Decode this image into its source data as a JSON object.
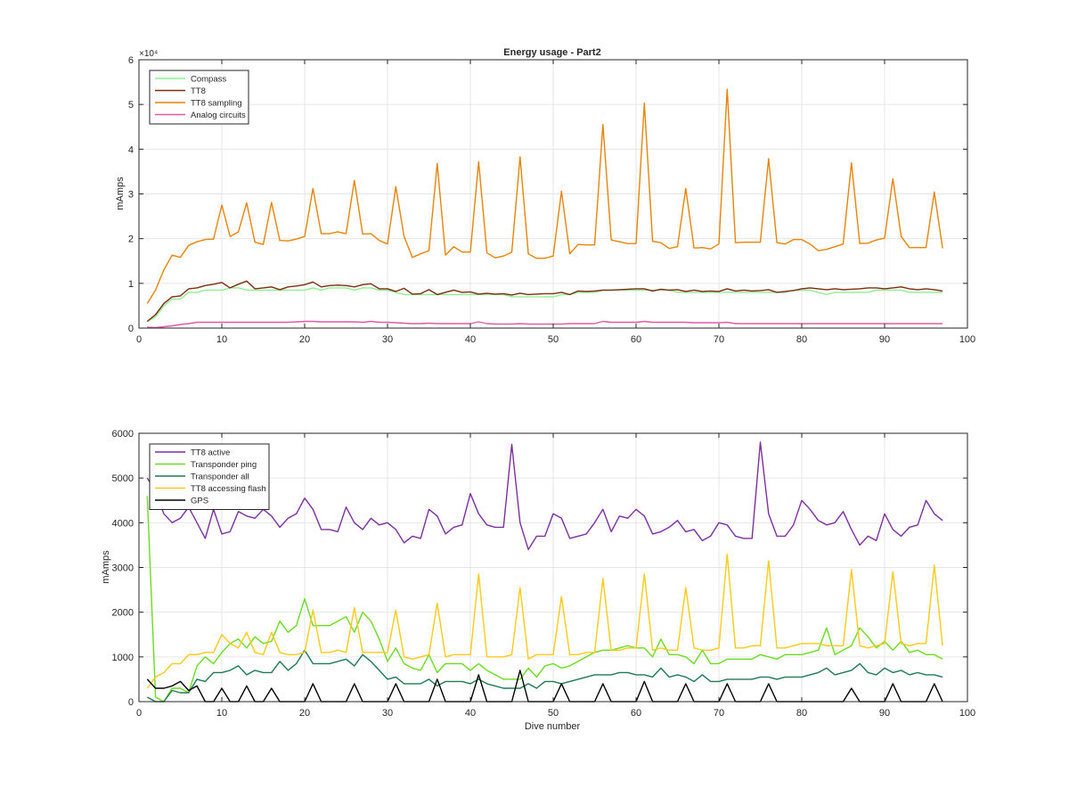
{
  "figure": {
    "background": "#ffffff"
  },
  "chart_data": [
    {
      "type": "line",
      "title": "Energy usage - Part2",
      "xlabel": "",
      "ylabel": "mAmps",
      "xlim": [
        0,
        100
      ],
      "ylim": [
        0,
        60000
      ],
      "xticks": [
        0,
        10,
        20,
        30,
        40,
        50,
        60,
        70,
        80,
        90,
        100
      ],
      "yticks": [
        0,
        10000,
        20000,
        30000,
        40000,
        50000,
        60000
      ],
      "ytick_labels": [
        "0",
        "1",
        "2",
        "3",
        "4",
        "5",
        "6"
      ],
      "exponent_label": "×10⁴",
      "grid": true,
      "legend_position": "top-left",
      "series": [
        {
          "name": "Compass",
          "color": "#90ee90",
          "x_start": 1,
          "values": [
            1500,
            2500,
            5000,
            6500,
            6500,
            8000,
            8000,
            8500,
            8500,
            8500,
            9000,
            9000,
            8500,
            8500,
            8500,
            8500,
            8500,
            8500,
            8500,
            8500,
            9000,
            8500,
            9000,
            9000,
            9000,
            8500,
            9000,
            9000,
            8500,
            8500,
            8000,
            7500,
            7500,
            7500,
            7500,
            7500,
            7500,
            7500,
            7500,
            7500,
            7500,
            7500,
            7500,
            7500,
            7000,
            7000,
            7000,
            7000,
            7000,
            7000,
            7500,
            7500,
            8000,
            8000,
            8000,
            8500,
            8500,
            8500,
            8500,
            8500,
            8500,
            8500,
            8500,
            8500,
            8000,
            8000,
            8000,
            8000,
            8000,
            8000,
            8000,
            8000,
            8000,
            8000,
            8000,
            8000,
            8000,
            8000,
            8500,
            8500,
            8500,
            8000,
            7500,
            8000,
            8000,
            8000,
            8000,
            8000,
            8500,
            8500,
            8500,
            8500,
            8000,
            8000,
            8000,
            8000,
            8000
          ]
        },
        {
          "name": "TT8",
          "color": "#7b2d0e",
          "x_start": 1,
          "values": [
            1500,
            3000,
            5500,
            7000,
            7200,
            8800,
            9000,
            9500,
            9800,
            10200,
            9000,
            9800,
            10500,
            8800,
            9000,
            9200,
            8600,
            9200,
            9400,
            9700,
            10300,
            9200,
            9500,
            9600,
            9500,
            9200,
            9700,
            9900,
            8800,
            8800,
            8200,
            8900,
            7600,
            7700,
            8600,
            7500,
            8000,
            8500,
            8000,
            8100,
            7600,
            7800,
            7600,
            7700,
            7400,
            7800,
            7500,
            7600,
            7700,
            7700,
            8000,
            7500,
            8300,
            8200,
            8300,
            8500,
            8500,
            8600,
            8700,
            8800,
            8800,
            8300,
            8700,
            8500,
            8600,
            8200,
            8500,
            8200,
            8300,
            8200,
            8800,
            8300,
            8500,
            8300,
            8400,
            8600,
            8000,
            8200,
            8400,
            8800,
            9000,
            8800,
            8600,
            8800,
            8600,
            8700,
            8800,
            9000,
            9000,
            8800,
            9000,
            9200,
            8800,
            8600,
            8800,
            8600,
            8300
          ]
        },
        {
          "name": "TT8 sampling",
          "color": "#e8840b",
          "x_start": 1,
          "values": [
            5500,
            8500,
            13000,
            16300,
            15800,
            18500,
            19300,
            19800,
            19900,
            27500,
            20500,
            21500,
            28000,
            19200,
            18700,
            28100,
            19600,
            19500,
            19900,
            20500,
            31200,
            21100,
            21100,
            21500,
            21100,
            33000,
            21000,
            21100,
            19600,
            18800,
            31600,
            20500,
            15800,
            16600,
            17300,
            36800,
            16300,
            18200,
            17000,
            17000,
            37200,
            16800,
            15700,
            16100,
            17000,
            38300,
            16600,
            15600,
            15600,
            16100,
            30600,
            16600,
            18700,
            18600,
            18600,
            45500,
            19700,
            19300,
            18900,
            18900,
            50300,
            19400,
            19100,
            17800,
            18200,
            31200,
            17900,
            18000,
            17700,
            18800,
            53400,
            19100,
            19200,
            19200,
            19200,
            37900,
            19100,
            18800,
            19800,
            19800,
            18800,
            17300,
            17600,
            18200,
            18800,
            37000,
            18900,
            19000,
            19700,
            20100,
            33400,
            20500,
            18000,
            18000,
            18000,
            30400,
            17800
          ]
        },
        {
          "name": "Analog circuits",
          "color": "#e05aa6",
          "x_start": 1,
          "values": [
            200,
            100,
            300,
            500,
            800,
            1000,
            1300,
            1300,
            1300,
            1300,
            1300,
            1300,
            1300,
            1300,
            1300,
            1300,
            1300,
            1300,
            1400,
            1500,
            1500,
            1400,
            1400,
            1400,
            1400,
            1400,
            1300,
            1500,
            1300,
            1300,
            1200,
            1100,
            1000,
            1000,
            1100,
            1000,
            1000,
            1000,
            1000,
            1000,
            1400,
            1000,
            900,
            900,
            900,
            1000,
            900,
            900,
            900,
            900,
            900,
            1000,
            1000,
            1000,
            1000,
            1500,
            1300,
            1300,
            1300,
            1300,
            1500,
            1300,
            1300,
            1300,
            1300,
            1300,
            1200,
            1200,
            1200,
            1200,
            1300,
            1000,
            1000,
            1000,
            1000,
            1000,
            1000,
            1000,
            1000,
            1000,
            1000,
            1000,
            1000,
            1000,
            1000,
            1000,
            1000,
            1000,
            1000,
            1000,
            1000,
            1000,
            1000,
            1000,
            1000,
            1000,
            1000
          ]
        }
      ]
    },
    {
      "type": "line",
      "title": "",
      "xlabel": "Dive number",
      "ylabel": "mAmps",
      "xlim": [
        0,
        100
      ],
      "ylim": [
        0,
        6000
      ],
      "xticks": [
        0,
        10,
        20,
        30,
        40,
        50,
        60,
        70,
        80,
        90,
        100
      ],
      "yticks": [
        0,
        1000,
        2000,
        3000,
        4000,
        5000,
        6000
      ],
      "ytick_labels": [
        "0",
        "1000",
        "2000",
        "3000",
        "4000",
        "5000",
        "6000"
      ],
      "grid": true,
      "legend_position": "top-left",
      "series": [
        {
          "name": "TT8 active",
          "color": "#7e2fa3",
          "x_start": 1,
          "values": [
            5000,
            4700,
            4200,
            4000,
            4100,
            4350,
            4000,
            3650,
            4300,
            3750,
            3800,
            4250,
            4150,
            4100,
            4300,
            4150,
            3900,
            4100,
            4200,
            4550,
            4300,
            3850,
            3850,
            3800,
            4350,
            4000,
            3850,
            4100,
            3950,
            4000,
            3850,
            3550,
            3700,
            3650,
            4300,
            4150,
            3750,
            3900,
            3950,
            4650,
            4200,
            3950,
            3900,
            3900,
            5750,
            4000,
            3400,
            3700,
            3700,
            4200,
            4100,
            3650,
            3700,
            3750,
            4000,
            4300,
            3800,
            4150,
            4100,
            4300,
            4150,
            3750,
            3800,
            3900,
            4050,
            3800,
            3850,
            3600,
            3700,
            4000,
            3950,
            3700,
            3650,
            3650,
            5800,
            4200,
            3700,
            3700,
            3950,
            4500,
            4300,
            4050,
            3950,
            4000,
            4250,
            3850,
            3500,
            3700,
            3600,
            4200,
            3850,
            3700,
            3900,
            3950,
            4500,
            4200,
            4050
          ]
        },
        {
          "name": "Transponder ping",
          "color": "#6cdc23",
          "x_start": 1,
          "values": [
            4600,
            100,
            0,
            300,
            300,
            200,
            800,
            1000,
            850,
            1100,
            1300,
            1400,
            1200,
            1450,
            1300,
            1350,
            1800,
            1550,
            1700,
            2300,
            1700,
            1700,
            1700,
            1800,
            1900,
            1550,
            2000,
            1800,
            1400,
            900,
            1200,
            850,
            750,
            700,
            1050,
            650,
            850,
            850,
            850,
            700,
            850,
            700,
            600,
            500,
            500,
            500,
            750,
            550,
            800,
            850,
            750,
            800,
            900,
            1000,
            1100,
            1150,
            1150,
            1200,
            1250,
            1200,
            1200,
            1000,
            1400,
            1050,
            1050,
            1000,
            850,
            1150,
            850,
            850,
            950,
            950,
            950,
            950,
            1050,
            1000,
            950,
            1050,
            1050,
            1050,
            1100,
            1150,
            1650,
            1050,
            1150,
            1250,
            1650,
            1450,
            1200,
            1350,
            1150,
            1350,
            1100,
            1150,
            1050,
            1050,
            950
          ]
        },
        {
          "name": "Transponder all",
          "color": "#1f7a55",
          "x_start": 1,
          "values": [
            100,
            0,
            0,
            250,
            200,
            200,
            500,
            450,
            650,
            650,
            700,
            800,
            600,
            700,
            650,
            650,
            900,
            700,
            850,
            1150,
            850,
            850,
            850,
            900,
            950,
            800,
            1050,
            900,
            700,
            500,
            550,
            400,
            400,
            400,
            500,
            350,
            450,
            450,
            450,
            400,
            500,
            400,
            350,
            300,
            300,
            300,
            400,
            300,
            450,
            450,
            400,
            450,
            500,
            550,
            600,
            600,
            600,
            650,
            650,
            600,
            600,
            550,
            750,
            550,
            600,
            550,
            450,
            600,
            450,
            450,
            500,
            500,
            500,
            500,
            550,
            550,
            500,
            550,
            550,
            550,
            600,
            650,
            750,
            600,
            650,
            700,
            850,
            650,
            600,
            750,
            650,
            700,
            600,
            650,
            600,
            600,
            550
          ]
        },
        {
          "name": "TT8 accessing flash",
          "color": "#ffc917",
          "x_start": 1,
          "values": [
            300,
            550,
            650,
            850,
            850,
            1050,
            1050,
            1100,
            1100,
            1500,
            1300,
            1200,
            1550,
            1100,
            1050,
            1550,
            1100,
            1050,
            1050,
            1100,
            2050,
            1100,
            1100,
            1150,
            1100,
            2100,
            1100,
            1100,
            1100,
            1100,
            2050,
            1000,
            950,
            1000,
            1050,
            2200,
            1000,
            1050,
            1050,
            1050,
            2850,
            1000,
            1000,
            1000,
            1050,
            2550,
            950,
            1050,
            1050,
            1050,
            2350,
            1050,
            1050,
            1100,
            1100,
            2750,
            1150,
            1150,
            1200,
            1200,
            2850,
            1150,
            1200,
            1150,
            1150,
            2550,
            1200,
            1150,
            1150,
            1200,
            3300,
            1200,
            1200,
            1250,
            1250,
            3150,
            1200,
            1200,
            1250,
            1300,
            1300,
            1300,
            1250,
            1250,
            1250,
            2950,
            1250,
            1200,
            1250,
            1300,
            2900,
            1300,
            1250,
            1300,
            1300,
            3050,
            1250
          ]
        },
        {
          "name": "GPS",
          "color": "#000000",
          "x_start": 1,
          "values": [
            500,
            300,
            300,
            350,
            450,
            250,
            350,
            0,
            0,
            300,
            0,
            0,
            350,
            0,
            0,
            300,
            0,
            0,
            0,
            0,
            400,
            0,
            0,
            0,
            0,
            400,
            0,
            0,
            0,
            0,
            400,
            0,
            0,
            0,
            0,
            500,
            0,
            0,
            0,
            0,
            600,
            0,
            0,
            0,
            0,
            700,
            0,
            0,
            0,
            0,
            400,
            0,
            0,
            0,
            0,
            400,
            0,
            0,
            0,
            0,
            450,
            0,
            0,
            0,
            0,
            400,
            0,
            0,
            0,
            0,
            400,
            0,
            0,
            0,
            0,
            400,
            0,
            0,
            0,
            0,
            0,
            0,
            0,
            0,
            0,
            300,
            0,
            0,
            0,
            0,
            400,
            0,
            0,
            0,
            0,
            400,
            0
          ]
        }
      ]
    }
  ]
}
